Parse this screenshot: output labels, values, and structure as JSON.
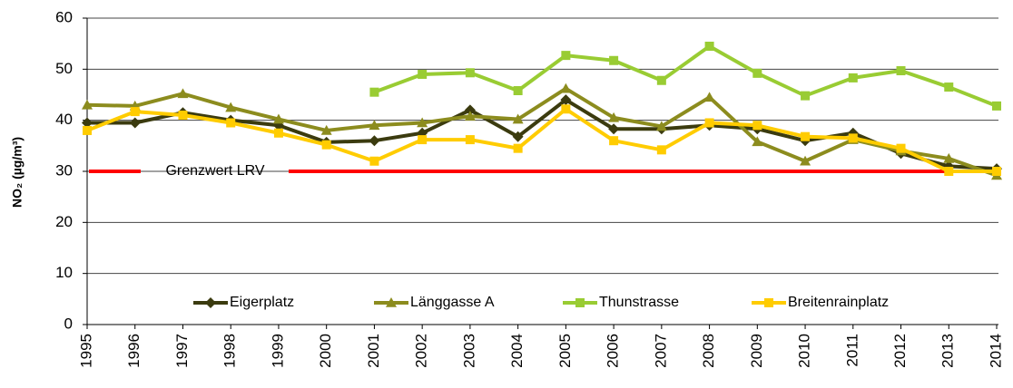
{
  "chart_data": {
    "type": "line",
    "y_label": "NO₂ (µg/m³)",
    "categories": [
      "1995",
      "1996",
      "1997",
      "1998",
      "1999",
      "2000",
      "2001",
      "2002",
      "2003",
      "2004",
      "2005",
      "2006",
      "2007",
      "2008",
      "2009",
      "2010",
      "2011",
      "2012",
      "2013",
      "2014"
    ],
    "series": [
      {
        "name": "Eigerplatz",
        "color": "#3b3b0f",
        "marker": "diamond",
        "values": [
          39.5,
          39.5,
          41.5,
          40,
          39,
          35.7,
          36,
          37.5,
          42,
          36.8,
          44,
          38.3,
          38.3,
          39,
          38.3,
          36,
          37.5,
          33.5,
          31,
          30.5
        ]
      },
      {
        "name": "Länggasse A",
        "color": "#8c8c1e",
        "marker": "triangle",
        "values": [
          43,
          42.8,
          45.2,
          42.5,
          40.2,
          38,
          39,
          39.5,
          40.8,
          40.2,
          46.2,
          40.5,
          38.8,
          44.5,
          35.8,
          32,
          36.2,
          34,
          32.5,
          29.2
        ]
      },
      {
        "name": "Thunstrasse",
        "color": "#99cc33",
        "marker": "square",
        "values": [
          null,
          null,
          null,
          null,
          null,
          null,
          45.5,
          49,
          49.3,
          45.8,
          52.7,
          51.7,
          47.8,
          54.5,
          49.2,
          44.8,
          48.3,
          49.7,
          46.5,
          42.8
        ]
      },
      {
        "name": "Breitenrainplatz",
        "color": "#ffcc00",
        "marker": "square",
        "values": [
          38,
          41.7,
          41,
          39.5,
          37.5,
          35.2,
          32,
          36.2,
          36.2,
          34.5,
          42.2,
          36,
          34.2,
          39.5,
          39,
          36.8,
          36.5,
          34.5,
          30,
          30
        ]
      }
    ],
    "threshold": {
      "label": "Grenzwert LRV",
      "value": 30,
      "color": "#ff0000"
    },
    "ylim": [
      0,
      60
    ],
    "yticks": [
      0,
      10,
      20,
      30,
      40,
      50,
      60
    ],
    "grid": true,
    "legend": "bottom"
  }
}
